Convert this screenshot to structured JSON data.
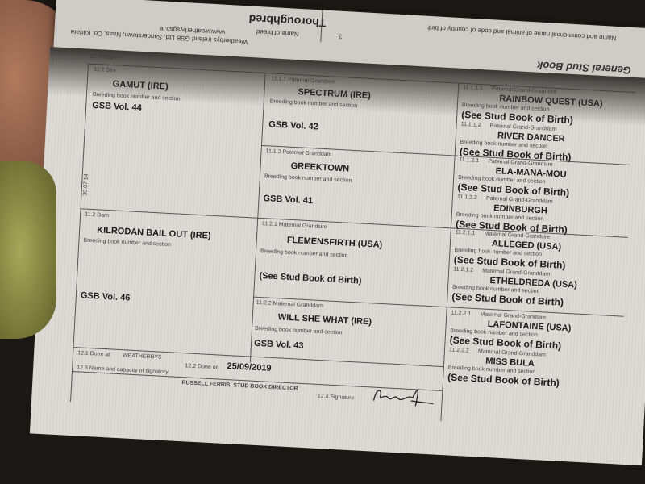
{
  "header_flap": {
    "title": "General Stud Book",
    "breed_label": "Name of breed",
    "breed_number": "3.",
    "breed": "Thoroughbred",
    "animal_label": "Name and commercial name of animal and code of country of birth",
    "publisher": "Weatherbys Ireland GSB Ltd, Sanderstown, Naas, Co. Kildare",
    "website": "www.weatherbysgsb.ie"
  },
  "pedigree": {
    "section_label": "11. Pedigree",
    "book_label": "Breeding book number and section",
    "side_note": "30.07.14",
    "sire": {
      "code": "11.1 Sire",
      "name": "GAMUT (IRE)",
      "book": "GSB Vol. 44"
    },
    "dam": {
      "code": "11.2 Dam",
      "name": "KILRODAN BAIL OUT (IRE)",
      "book": "GSB Vol. 46"
    },
    "grandparents": [
      {
        "code": "11.1.1 Paternal Grandsire",
        "name": "SPECTRUM (IRE)",
        "book": "GSB Vol. 42"
      },
      {
        "code": "11.1.2 Paternal Granddam",
        "name": "GREEKTOWN",
        "book": "GSB Vol. 41"
      },
      {
        "code": "11.2.1 Maternal Grandsire",
        "name": "FLEMENSFIRTH (USA)",
        "book": "(See Stud Book of Birth)"
      },
      {
        "code": "11.2.2 Maternal Granddam",
        "name": "WILL SHE WHAT (IRE)",
        "book": "GSB Vol. 43"
      }
    ],
    "great_grandparents": [
      {
        "num": "11.1.1.1",
        "role": "Paternal Grand-Grandsire",
        "name": "RAINBOW QUEST (USA)",
        "book": "(See Stud Book of Birth)"
      },
      {
        "num": "11.1.1.2",
        "role": "Paternal Grand-Granddam",
        "name": "RIVER DANCER",
        "book": "(See Stud Book of Birth)"
      },
      {
        "num": "11.1.2.1",
        "role": "Paternal Grand-Grandsire",
        "name": "ELA-MANA-MOU",
        "book": "(See Stud Book of Birth)"
      },
      {
        "num": "11.1.2.2",
        "role": "Paternal Grand-Granddam",
        "name": "EDINBURGH",
        "book": "(See Stud Book of Birth)"
      },
      {
        "num": "11.2.1.1",
        "role": "Maternal Grand-Grandsire",
        "name": "ALLEGED (USA)",
        "book": "(See Stud Book of Birth)"
      },
      {
        "num": "11.2.1.2",
        "role": "Maternal Grand-Granddam",
        "name": "ETHELDREDA (USA)",
        "book": "(See Stud Book of Birth)"
      },
      {
        "num": "11.2.2.1",
        "role": "Maternal Grand-Grandsire",
        "name": "LAFONTAINE (USA)",
        "book": "(See Stud Book of Birth)"
      },
      {
        "num": "11.2.2.2",
        "role": "Maternal Grand-Granddam",
        "name": "MISS BULA",
        "book": "(See Stud Book of Birth)"
      }
    ]
  },
  "footer": {
    "done_at_label": "12.1 Done at",
    "done_at": "WEATHERBYS",
    "done_on_label": "12.2 Done on",
    "done_on": "25/09/2019",
    "signatory_label": "12.3 Name and capacity of signatory",
    "signatory": "RUSSELL FERRIS, STUD BOOK DIRECTOR",
    "signature_label": "12.4 Signature",
    "signature": "Russell Ferris"
  }
}
